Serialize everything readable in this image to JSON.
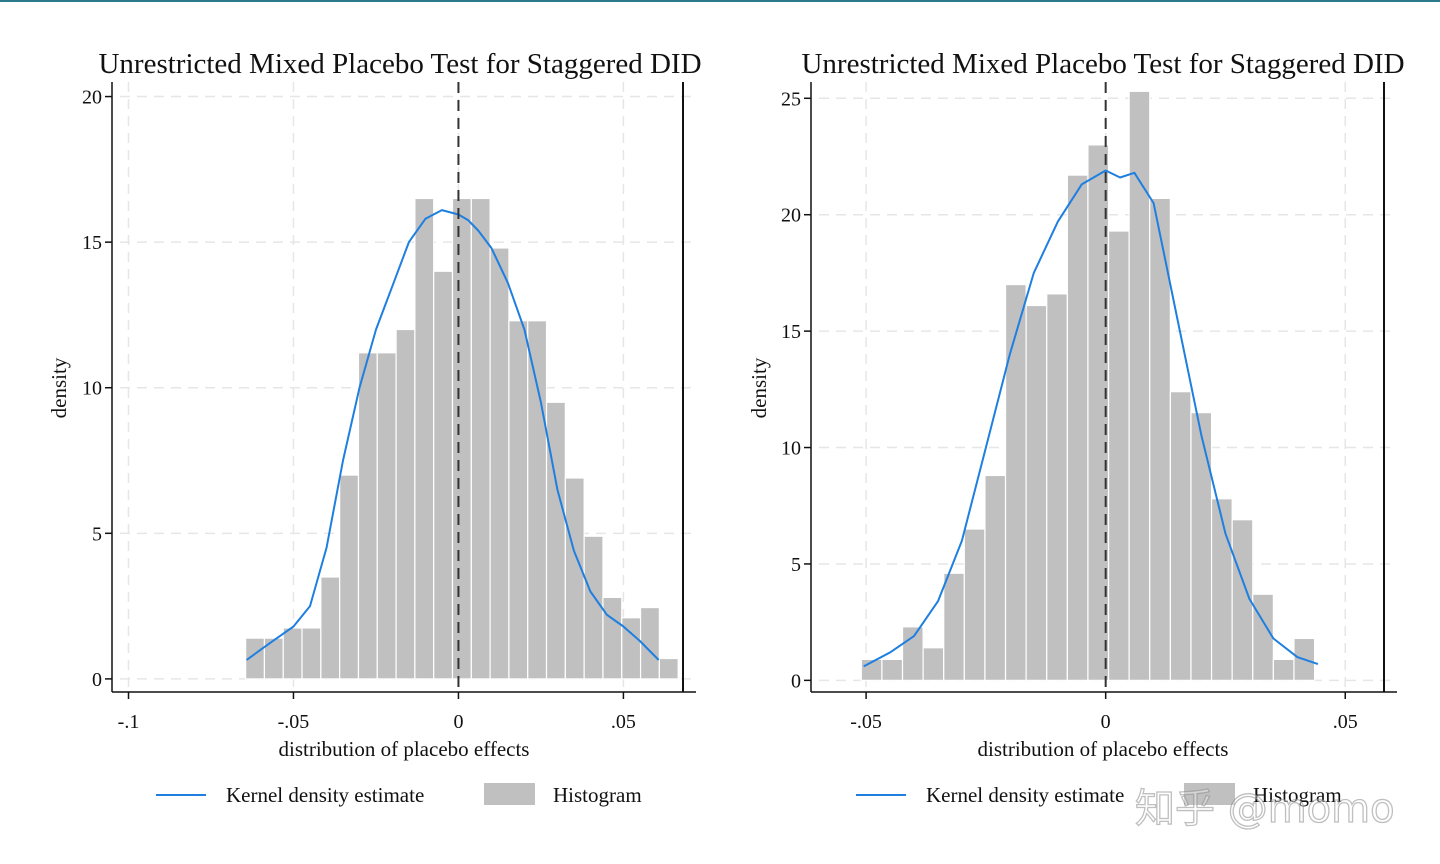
{
  "watermark": "知乎 @momo",
  "chart_data": [
    {
      "type": "bar",
      "title": "Unrestricted Mixed Placebo Test for Staggered DID",
      "xlabel": "distribution of placebo effects",
      "ylabel": "density",
      "xlim": [
        -0.105,
        0.072
      ],
      "ylim": [
        -0.45,
        20.5
      ],
      "xticks": [
        {
          "value": -0.1,
          "label": "-.1"
        },
        {
          "value": -0.05,
          "label": "-.05"
        },
        {
          "value": 0,
          "label": "0"
        },
        {
          "value": 0.05,
          "label": ".05"
        }
      ],
      "yticks": [
        {
          "value": 0,
          "label": "0"
        },
        {
          "value": 5,
          "label": "5"
        },
        {
          "value": 10,
          "label": "10"
        },
        {
          "value": 15,
          "label": "15"
        },
        {
          "value": 20,
          "label": "20"
        }
      ],
      "grid": true,
      "reference_line_x": 0,
      "bin_start": -0.0645,
      "bin_width": 0.0057,
      "histogram": [
        1.4,
        1.4,
        1.75,
        1.75,
        3.5,
        7.0,
        11.2,
        11.2,
        12.0,
        16.5,
        14.0,
        16.5,
        16.5,
        14.8,
        12.3,
        12.3,
        9.5,
        6.9,
        4.9,
        2.8,
        2.1,
        2.45,
        0.7
      ],
      "kde": {
        "x": [
          -0.0642,
          -0.06,
          -0.055,
          -0.05,
          -0.045,
          -0.04,
          -0.035,
          -0.03,
          -0.025,
          -0.02,
          -0.015,
          -0.01,
          -0.005,
          0.0,
          0.003,
          0.006,
          0.01,
          0.015,
          0.02,
          0.025,
          0.03,
          0.035,
          0.04,
          0.045,
          0.05,
          0.055,
          0.0607
        ],
        "y": [
          0.65,
          1.0,
          1.4,
          1.8,
          2.5,
          4.5,
          7.5,
          10.0,
          12.0,
          13.5,
          15.0,
          15.8,
          16.1,
          15.95,
          15.75,
          15.4,
          14.8,
          13.6,
          12.0,
          9.5,
          6.5,
          4.4,
          3.0,
          2.2,
          1.8,
          1.3,
          0.65
        ]
      },
      "legend": [
        {
          "name": "Kernel density estimate",
          "color": "#1e7fe0"
        },
        {
          "name": "Histogram",
          "color": "#c0c0c0"
        }
      ]
    },
    {
      "type": "bar",
      "title": "Unrestricted Mixed Placebo Test for Staggered DID",
      "xlabel": "distribution of placebo effects",
      "ylabel": "density",
      "xlim": [
        -0.0615,
        0.0608
      ],
      "ylim": [
        -0.5,
        25.7
      ],
      "xticks": [
        {
          "value": -0.05,
          "label": "-.05"
        },
        {
          "value": 0,
          "label": "0"
        },
        {
          "value": 0.05,
          "label": ".05"
        }
      ],
      "yticks": [
        {
          "value": 0,
          "label": "0"
        },
        {
          "value": 5,
          "label": "5"
        },
        {
          "value": 10,
          "label": "10"
        },
        {
          "value": 15,
          "label": "15"
        },
        {
          "value": 20,
          "label": "20"
        },
        {
          "value": 25,
          "label": "25"
        }
      ],
      "grid": true,
      "reference_line_x": 0,
      "bin_start": -0.051,
      "bin_width": 0.0043,
      "histogram": [
        0.9,
        0.9,
        2.3,
        1.4,
        4.6,
        6.5,
        8.8,
        17.0,
        16.1,
        16.6,
        21.7,
        23.0,
        19.3,
        25.3,
        20.7,
        12.4,
        11.5,
        7.8,
        6.9,
        3.7,
        0.9,
        1.8
      ],
      "kde": {
        "x": [
          -0.0505,
          -0.045,
          -0.04,
          -0.035,
          -0.03,
          -0.025,
          -0.02,
          -0.015,
          -0.01,
          -0.005,
          0.0,
          0.003,
          0.006,
          0.01,
          0.015,
          0.02,
          0.025,
          0.03,
          0.035,
          0.04,
          0.0443
        ],
        "y": [
          0.6,
          1.2,
          1.9,
          3.4,
          6.0,
          10.0,
          14.0,
          17.5,
          19.7,
          21.3,
          21.9,
          21.6,
          21.8,
          20.5,
          15.5,
          10.5,
          6.3,
          3.5,
          1.8,
          1.0,
          0.7
        ]
      },
      "legend": [
        {
          "name": "Kernel density estimate",
          "color": "#1e7fe0"
        },
        {
          "name": "Histogram",
          "color": "#c0c0c0"
        }
      ]
    }
  ]
}
